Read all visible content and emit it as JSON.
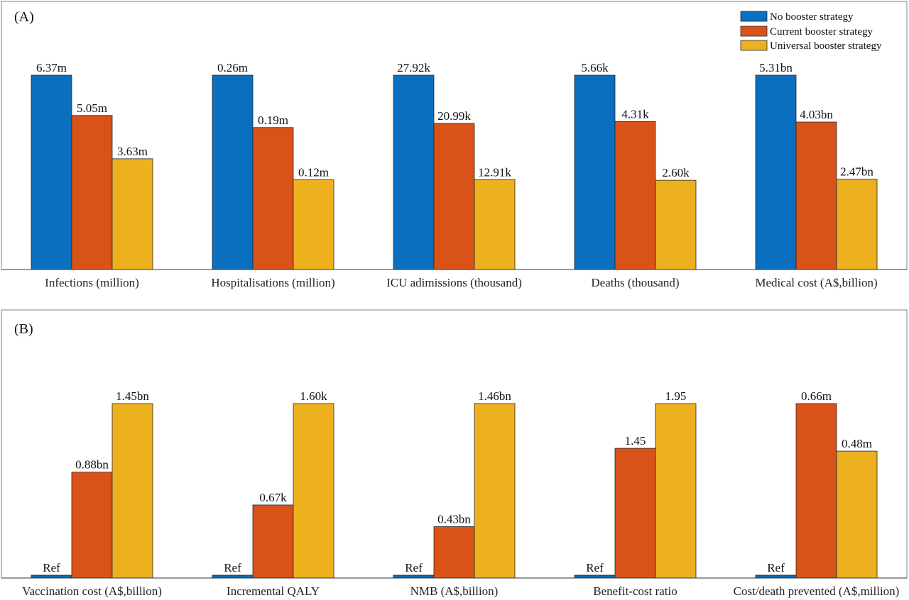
{
  "legend": [
    {
      "label": "No booster strategy",
      "color": "#0a6fbf"
    },
    {
      "label": "Current booster strategy",
      "color": "#d95319"
    },
    {
      "label": "Universal booster strategy",
      "color": "#edb120"
    }
  ],
  "chart_data": [
    {
      "type": "bar",
      "panel_label": "(A)",
      "legend_position": "top-right",
      "grid": false,
      "categories": [
        "Infections (million)",
        "Hospitalisations (million)",
        "ICU adimissions (thousand)",
        "Deaths (thousand)",
        "Medical cost (A$,billion)"
      ],
      "series": [
        {
          "name": "No booster strategy",
          "values": [
            6.37,
            0.26,
            27.92,
            5.66,
            5.31
          ],
          "labels": [
            "6.37m",
            "0.26m",
            "27.92k",
            "5.66k",
            "5.31bn"
          ]
        },
        {
          "name": "Current booster strategy",
          "values": [
            5.05,
            0.19,
            20.99,
            4.31,
            4.03
          ],
          "labels": [
            "5.05m",
            "0.19m",
            "20.99k",
            "4.31k",
            "4.03bn"
          ]
        },
        {
          "name": "Universal booster strategy",
          "values": [
            3.63,
            0.12,
            12.91,
            2.6,
            2.47
          ],
          "labels": [
            "3.63m",
            "0.12m",
            "12.91k",
            "2.60k",
            "2.47bn"
          ]
        }
      ]
    },
    {
      "type": "bar",
      "panel_label": "(B)",
      "grid": false,
      "categories": [
        "Vaccination cost (A$,billion)",
        "Incremental QALY",
        "NMB (A$,billion)",
        "Benefit-cost ratio",
        "Cost/death prevented (A$,million)"
      ],
      "series": [
        {
          "name": "No booster strategy",
          "values": [
            0,
            0,
            0,
            0,
            0
          ],
          "labels": [
            "Ref",
            "Ref",
            "Ref",
            "Ref",
            "Ref"
          ]
        },
        {
          "name": "Current booster strategy",
          "values": [
            0.88,
            0.67,
            0.43,
            1.45,
            0.66
          ],
          "labels": [
            "0.88bn",
            "0.67k",
            "0.43bn",
            "1.45",
            "0.66m"
          ]
        },
        {
          "name": "Universal booster strategy",
          "values": [
            1.45,
            1.6,
            1.46,
            1.95,
            0.48
          ],
          "labels": [
            "1.45bn",
            "1.60k",
            "1.46bn",
            "1.95",
            "0.48m"
          ]
        }
      ]
    }
  ]
}
